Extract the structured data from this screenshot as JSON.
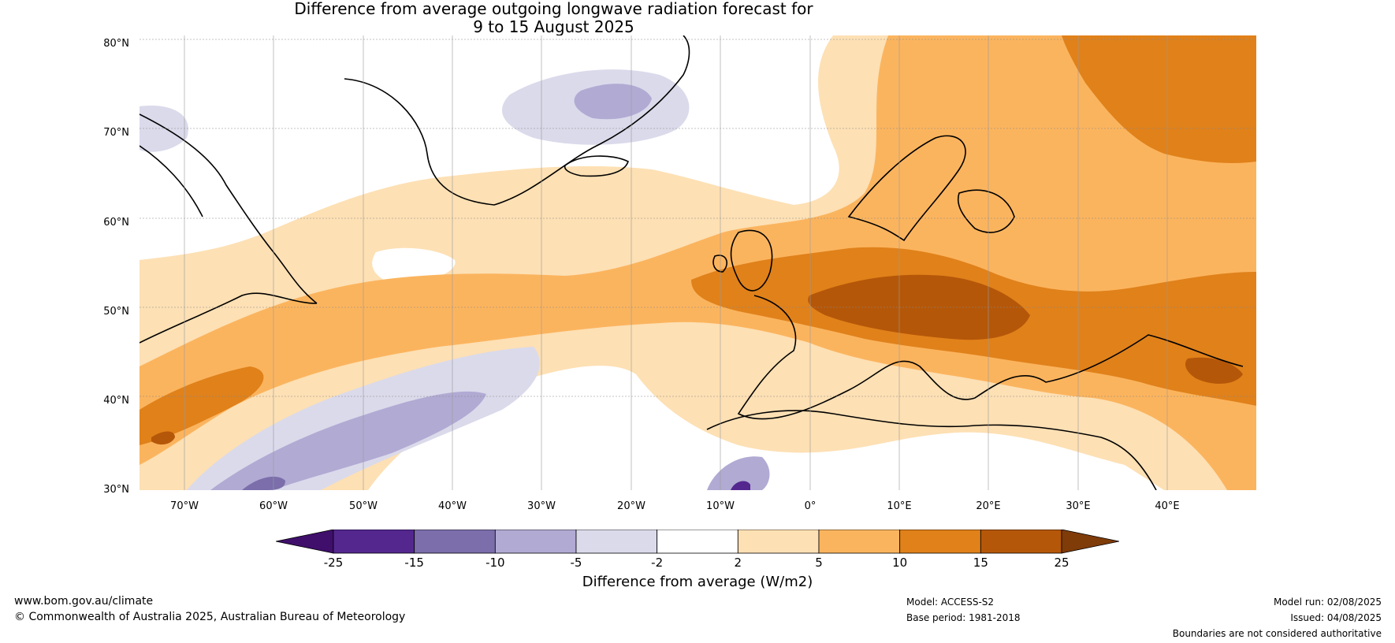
{
  "title": {
    "line1": "Difference from average outgoing longwave radiation forecast for",
    "line2": "9 to 15 August 2025"
  },
  "map": {
    "latitude_labels": [
      "80°N",
      "70°N",
      "60°N",
      "50°N",
      "40°N",
      "30°N"
    ],
    "longitude_labels": [
      "70°W",
      "60°W",
      "50°W",
      "40°W",
      "30°W",
      "20°W",
      "10°W",
      "0°",
      "10°E",
      "20°E",
      "30°E",
      "40°E"
    ],
    "gridlines": "dotted"
  },
  "legend": {
    "label": "Difference from average (W/m2)",
    "ticks": [
      "-25",
      "-15",
      "-10",
      "-5",
      "-2",
      "2",
      "5",
      "10",
      "15",
      "25"
    ],
    "colors": [
      "#3f0f6b",
      "#54278f",
      "#7b6eab",
      "#b1aad3",
      "#dadaeb",
      "#ffffff",
      "#fde0b4",
      "#fbb45e",
      "#e0811a",
      "#b55709",
      "#7f3b08"
    ]
  },
  "footer": {
    "website": "www.bom.gov.au/climate",
    "copyright": "© Commonwealth of Australia 2025, Australian Bureau of Meteorology",
    "model": "Model: ACCESS-S2",
    "base_period": "Base period: 1981-2018",
    "model_run": "Model run: 02/08/2025",
    "issued": "Issued: 04/08/2025",
    "disclaimer": "Boundaries are not considered authoritative"
  }
}
